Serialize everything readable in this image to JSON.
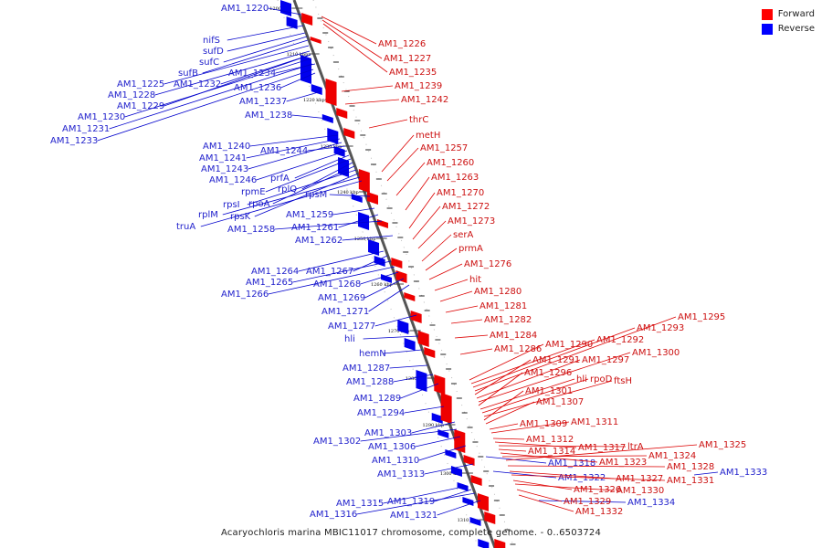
{
  "legend": {
    "forward_label": "Forward",
    "reverse_label": "Reverse",
    "forward_color": "#ff0000",
    "reverse_color": "#0000ff"
  },
  "caption": "Acaryochloris marina MBIC11017 chromosome, complete genome. - 0..6503724",
  "ticks": [
    "1200 kbp",
    "1210 kbp",
    "1220 kbp",
    "1230 kbp",
    "1240 kbp",
    "1250 kbp",
    "1260 kbp",
    "1270 kbp",
    "1280 kbp",
    "1290 kbp",
    "1300 kbp",
    "1310 kbp"
  ],
  "reverse_genes": [
    "AM1_1220",
    "nifS",
    "sufD",
    "sufC",
    "sufB",
    "AM1_1225",
    "AM1_1228",
    "AM1_1229",
    "AM1_1230",
    "AM1_1231",
    "AM1_1233",
    "AM1_1232",
    "AM1_1234",
    "AM1_1236",
    "AM1_1237",
    "AM1_1238",
    "AM1_1240",
    "AM1_1241",
    "AM1_1243",
    "AM1_1244",
    "AM1_1246",
    "prfA",
    "rpmE",
    "rplQ",
    "rpoA",
    "rpsI",
    "rpsK",
    "rplM",
    "truA",
    "rpsM",
    "AM1_1259",
    "AM1_1261",
    "AM1_1258",
    "AM1_1262",
    "AM1_1264",
    "AM1_1267",
    "AM1_1265",
    "AM1_1266",
    "AM1_1268",
    "AM1_1269",
    "AM1_1271",
    "AM1_1277",
    "hli",
    "hemN",
    "AM1_1287",
    "AM1_1288",
    "AM1_1289",
    "AM1_1294",
    "AM1_1303",
    "AM1_1302",
    "AM1_1306",
    "AM1_1310",
    "AM1_1313",
    "AM1_1318",
    "AM1_1322",
    "AM1_1333",
    "AM1_1334",
    "AM1_1315",
    "AM1_1319",
    "AM1_1316",
    "AM1_1321"
  ],
  "forward_genes": [
    "AM1_1226",
    "AM1_1227",
    "AM1_1235",
    "AM1_1239",
    "AM1_1242",
    "thrC",
    "metH",
    "AM1_1257",
    "AM1_1260",
    "AM1_1263",
    "AM1_1270",
    "AM1_1272",
    "AM1_1273",
    "serA",
    "prmA",
    "AM1_1276",
    "hit",
    "AM1_1280",
    "AM1_1281",
    "AM1_1282",
    "AM1_1284",
    "AM1_1286",
    "AM1_1290",
    "AM1_1292",
    "AM1_1293",
    "AM1_1295",
    "AM1_1291",
    "AM1_1297",
    "AM1_1300",
    "AM1_1296",
    "hli",
    "rpoD",
    "ftsH",
    "AM1_1301",
    "AM1_1307",
    "AM1_1309",
    "AM1_1311",
    "AM1_1312",
    "AM1_1317",
    "ltrA",
    "AM1_1314",
    "AM1_1323",
    "AM1_1324",
    "AM1_1325",
    "AM1_1328",
    "AM1_1327",
    "AM1_1331",
    "AM1_1326",
    "AM1_1330",
    "AM1_1329",
    "AM1_1332"
  ]
}
